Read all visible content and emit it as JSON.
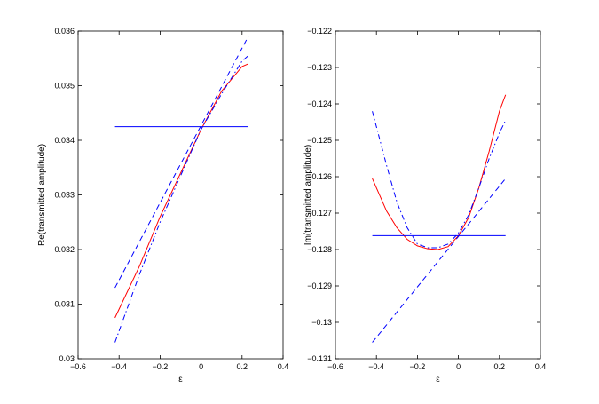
{
  "colors": {
    "solid_series": "#ff0000",
    "dashed_series": "#0000ff",
    "flat_series": "#0000ff",
    "axes": "#000000",
    "background": "#ffffff"
  },
  "chart_data": [
    {
      "type": "line",
      "ylabel": "Re(transmitted amplitude)",
      "xlabel": "ε",
      "xlim": [
        -0.6,
        0.4
      ],
      "ylim": [
        0.03,
        0.036
      ],
      "xticks": [
        -0.6,
        -0.4,
        -0.2,
        0,
        0.2,
        0.4
      ],
      "xtick_labels": [
        "−0.6",
        "−0.4",
        "−0.2",
        "0",
        "0.2",
        "0.4"
      ],
      "yticks": [
        0.03,
        0.031,
        0.032,
        0.033,
        0.034,
        0.035,
        0.036
      ],
      "ytick_labels": [
        "0.03",
        "0.031",
        "0.032",
        "0.033",
        "0.034",
        "0.035",
        "0.036"
      ],
      "grid": false,
      "legend": "none",
      "series": [
        {
          "style": "solid",
          "color": "#ff0000",
          "x": [
            -0.42,
            -0.3,
            -0.2,
            -0.1,
            0,
            0.1,
            0.2,
            0.23
          ],
          "y": [
            0.03075,
            0.0317,
            0.0326,
            0.0334,
            0.0342,
            0.0349,
            0.03535,
            0.0354
          ]
        },
        {
          "style": "dashed",
          "color": "#0000ff",
          "x": [
            -0.42,
            0.23
          ],
          "y": [
            0.0313,
            0.0359
          ]
        },
        {
          "style": "dash-dot",
          "color": "#0000ff",
          "x": [
            -0.42,
            -0.3,
            -0.2,
            -0.1,
            0,
            0.1,
            0.2,
            0.23
          ],
          "y": [
            0.0303,
            0.03155,
            0.0325,
            0.03335,
            0.0342,
            0.03485,
            0.03545,
            0.03555
          ]
        },
        {
          "style": "solid",
          "color": "#0000ff",
          "x": [
            -0.42,
            0.23
          ],
          "y": [
            0.03425,
            0.03425
          ]
        }
      ]
    },
    {
      "type": "line",
      "ylabel": "Im(transmitted amplitude)",
      "xlabel": "ε",
      "xlim": [
        -0.6,
        0.4
      ],
      "ylim": [
        -0.131,
        -0.122
      ],
      "xticks": [
        -0.6,
        -0.4,
        -0.2,
        0,
        0.2,
        0.4
      ],
      "xtick_labels": [
        "−0.6",
        "−0.4",
        "−0.2",
        "0",
        "0.2",
        "0.4"
      ],
      "yticks": [
        -0.131,
        -0.13,
        -0.129,
        -0.128,
        -0.127,
        -0.126,
        -0.125,
        -0.124,
        -0.123,
        -0.122
      ],
      "ytick_labels": [
        "−0.131",
        "−0.13",
        "−0.129",
        "−0.128",
        "−0.127",
        "−0.126",
        "−0.125",
        "−0.124",
        "−0.123",
        "−0.122"
      ],
      "grid": false,
      "legend": "none",
      "series": [
        {
          "style": "solid",
          "color": "#ff0000",
          "x": [
            -0.42,
            -0.35,
            -0.3,
            -0.25,
            -0.2,
            -0.15,
            -0.1,
            -0.05,
            0,
            0.05,
            0.1,
            0.15,
            0.2,
            0.23
          ],
          "y": [
            -0.12605,
            -0.12695,
            -0.1274,
            -0.12772,
            -0.1279,
            -0.12798,
            -0.128,
            -0.12792,
            -0.12762,
            -0.12712,
            -0.1263,
            -0.1253,
            -0.1242,
            -0.12375
          ]
        },
        {
          "style": "dashed",
          "color": "#0000ff",
          "x": [
            -0.42,
            0.23
          ],
          "y": [
            -0.13055,
            -0.12605
          ]
        },
        {
          "style": "dash-dot",
          "color": "#0000ff",
          "x": [
            -0.42,
            -0.35,
            -0.3,
            -0.25,
            -0.2,
            -0.15,
            -0.1,
            -0.05,
            0,
            0.05,
            0.1,
            0.15,
            0.2,
            0.23
          ],
          "y": [
            -0.1242,
            -0.1257,
            -0.1267,
            -0.1274,
            -0.12785,
            -0.12795,
            -0.12795,
            -0.12785,
            -0.12755,
            -0.12705,
            -0.1263,
            -0.1255,
            -0.1248,
            -0.12445
          ]
        },
        {
          "style": "solid",
          "color": "#0000ff",
          "x": [
            -0.42,
            0.23
          ],
          "y": [
            -0.12762,
            -0.12762
          ]
        }
      ]
    }
  ]
}
